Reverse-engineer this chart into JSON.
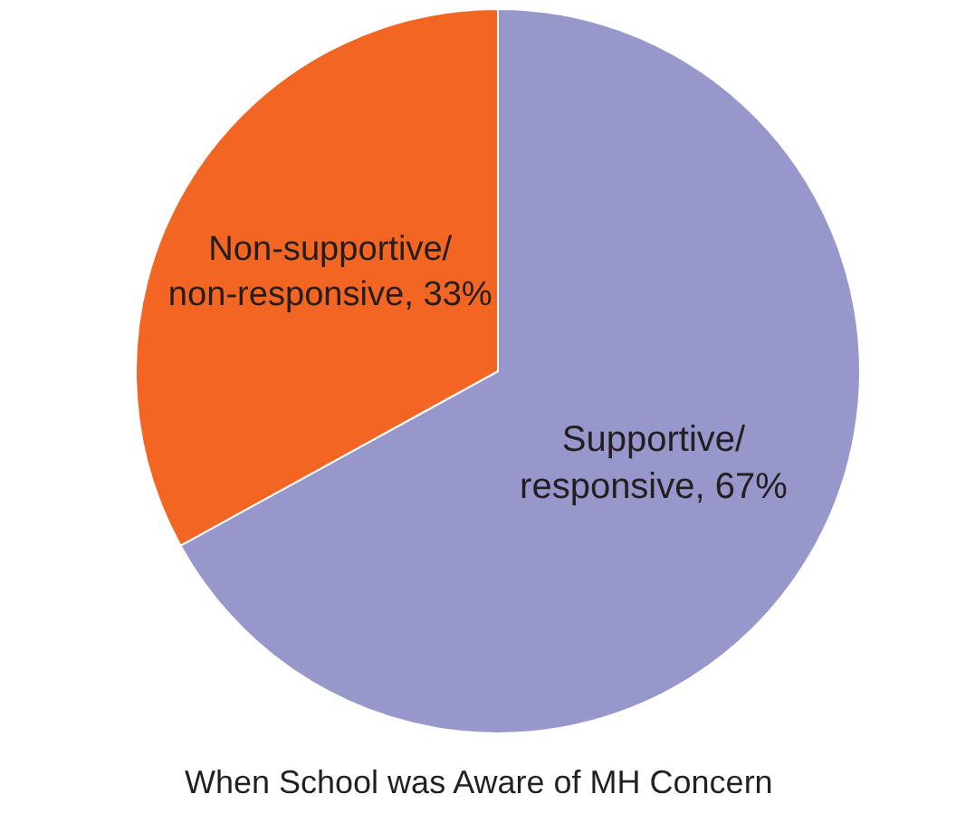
{
  "chart_data": {
    "type": "pie",
    "title": "When School was Aware of MH Concern",
    "categories": [
      "Supportive/responsive",
      "Non-supportive/non-responsive"
    ],
    "values": [
      67,
      33
    ],
    "value_labels": [
      "67%",
      "33%"
    ],
    "colors": [
      "#9797cb",
      "#f26522"
    ],
    "legend": false
  }
}
